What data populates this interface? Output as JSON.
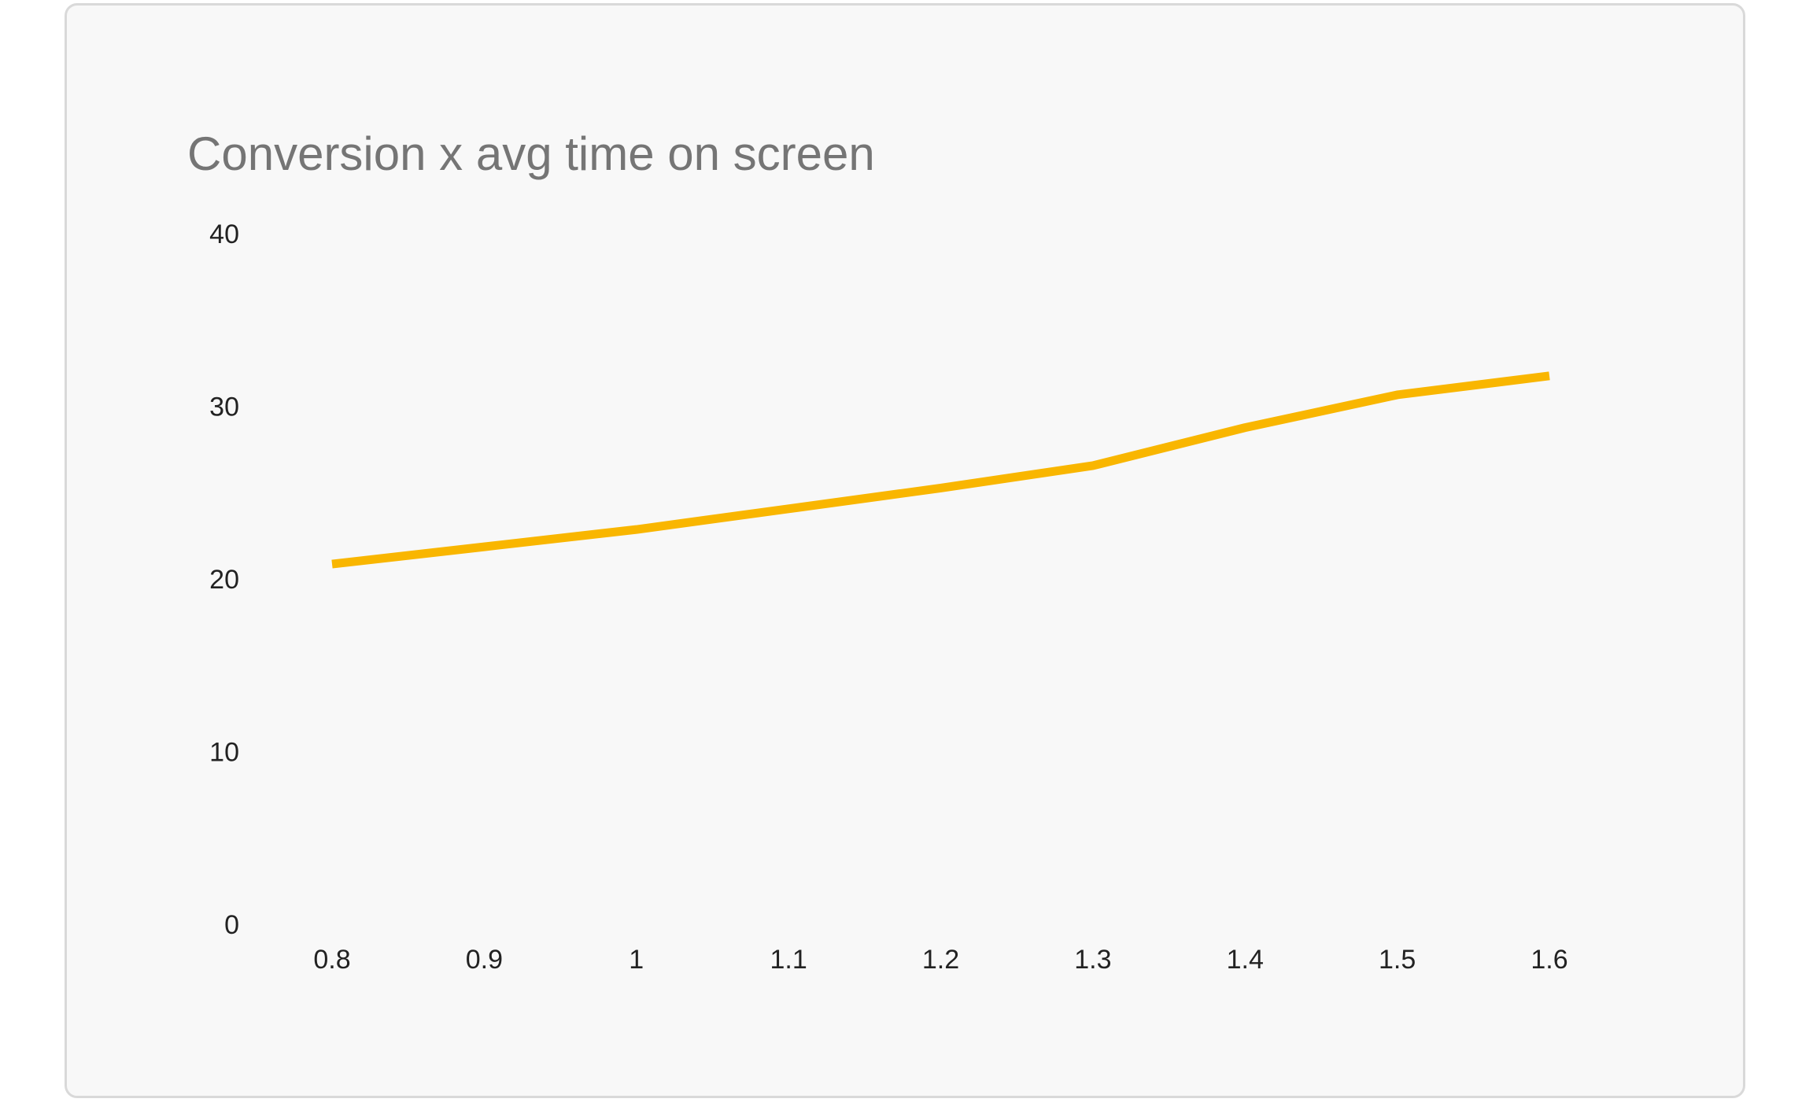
{
  "chart_data": {
    "type": "line",
    "title": "Conversion x avg time on screen",
    "x": [
      0.8,
      0.9,
      1,
      1.1,
      1.2,
      1.3,
      1.4,
      1.5,
      1.6
    ],
    "series": [
      {
        "color": "#f9b600",
        "values": [
          21.0,
          22.0,
          23.0,
          24.2,
          25.4,
          26.7,
          28.9,
          30.8,
          31.9
        ]
      }
    ],
    "xlim": [
      0.8,
      1.6
    ],
    "xticks": [
      0.8,
      0.9,
      1,
      1.1,
      1.2,
      1.3,
      1.4,
      1.5,
      1.6
    ],
    "ylim": [
      0,
      40
    ],
    "yticks": [
      0,
      10,
      20,
      30,
      40
    ],
    "grid": false
  }
}
